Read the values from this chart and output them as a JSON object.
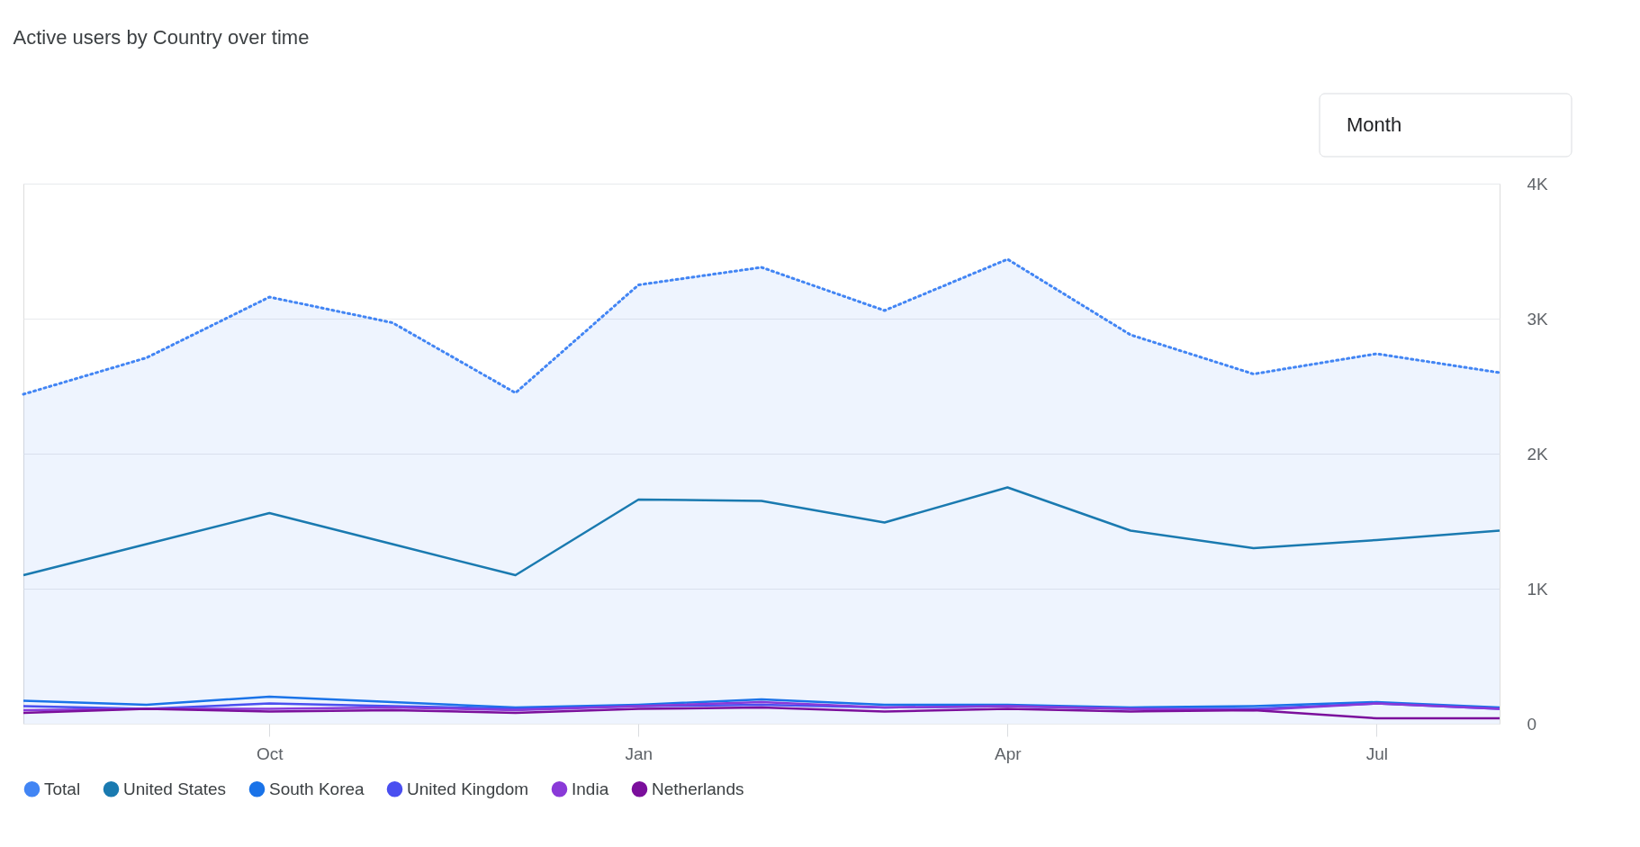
{
  "chart_data": {
    "type": "line",
    "title": "Active users by Country over time",
    "annotations": [
      "Month"
    ],
    "categories": [
      null,
      null,
      "Oct",
      null,
      null,
      "Jan",
      null,
      null,
      "Apr",
      null,
      null,
      "Jul",
      null
    ],
    "series": [
      {
        "name": "Total",
        "type": "area",
        "line_style": "dotted",
        "color": "#4285f4",
        "values": [
          2440,
          2710,
          3160,
          2970,
          2450,
          3250,
          3380,
          3060,
          3440,
          2880,
          2590,
          2740,
          2600
        ]
      },
      {
        "name": "United States",
        "color": "#1a7ab0",
        "values": [
          1100,
          1330,
          1560,
          1330,
          1100,
          1660,
          1650,
          1490,
          1750,
          1430,
          1300,
          1360,
          1430
        ]
      },
      {
        "name": "South Korea",
        "color": "#1a73e8",
        "values": [
          170,
          140,
          200,
          160,
          120,
          140,
          180,
          140,
          140,
          120,
          130,
          160,
          120
        ]
      },
      {
        "name": "United Kingdom",
        "color": "#4a4ff0",
        "values": [
          130,
          110,
          150,
          130,
          110,
          130,
          140,
          120,
          130,
          110,
          110,
          150,
          110
        ]
      },
      {
        "name": "India",
        "color": "#8a3ad8",
        "values": [
          100,
          110,
          110,
          120,
          100,
          130,
          160,
          120,
          130,
          110,
          100,
          150,
          110
        ]
      },
      {
        "name": "Netherlands",
        "color": "#7b0f9c",
        "values": [
          80,
          110,
          90,
          100,
          80,
          110,
          120,
          90,
          110,
          90,
          100,
          40,
          40
        ]
      }
    ],
    "ylim": [
      0,
      4000
    ],
    "yticks": [
      0,
      {
        "value": 1000,
        "label": "1K"
      },
      {
        "value": 2000,
        "label": "2K"
      },
      {
        "value": 3000,
        "label": "3K"
      },
      {
        "value": 4000,
        "label": "4K"
      }
    ],
    "grid": "y",
    "legend": "bottom",
    "marker": "none",
    "line_style": "solid"
  }
}
